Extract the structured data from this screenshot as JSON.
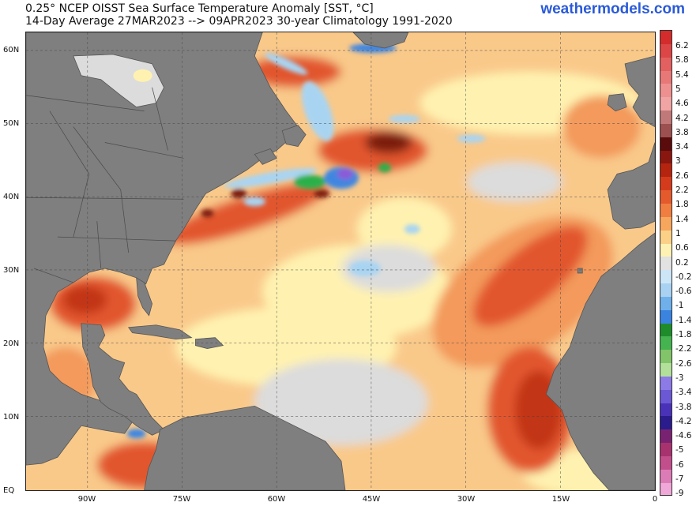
{
  "header": {
    "title_line1": "0.25° NCEP OISST Sea Surface Temperature Anomaly [SST, °C]",
    "title_line2": "14-Day Average 27MAR2023 --> 09APR2023   30-year Climatology 1991-2020",
    "brand": "weathermodels.com"
  },
  "axes": {
    "lat_labels": [
      {
        "label": "60N",
        "lat": 60
      },
      {
        "label": "50N",
        "lat": 50
      },
      {
        "label": "40N",
        "lat": 40
      },
      {
        "label": "30N",
        "lat": 30
      },
      {
        "label": "20N",
        "lat": 20
      },
      {
        "label": "10N",
        "lat": 10
      },
      {
        "label": "EQ",
        "lat": 0
      }
    ],
    "lon_labels": [
      {
        "label": "90W",
        "lon": -90
      },
      {
        "label": "75W",
        "lon": -75
      },
      {
        "label": "60W",
        "lon": -60
      },
      {
        "label": "45W",
        "lon": -45
      },
      {
        "label": "30W",
        "lon": -30
      },
      {
        "label": "15W",
        "lon": -15
      },
      {
        "label": "0",
        "lon": 0
      }
    ],
    "lon_range": [
      -100,
      0
    ],
    "lat_range": [
      -0.5,
      62.5
    ]
  },
  "colors": {
    "land": "#7f7f7f",
    "land_lines": "#5a5a5a",
    "near_zero": "#dcdcdc",
    "mild_warm": "#fff2b0",
    "warm": "#f9c98a",
    "warmer": "#f39a5c",
    "hot": "#e2562d",
    "hotter": "#c23519",
    "extreme": "#7a1b10",
    "cool": "#a8d4f2",
    "cold": "#3f86e0",
    "very_cold": "#29b04a"
  },
  "colorbar": {
    "labels": [
      "6.2",
      "5.8",
      "5.4",
      "5",
      "4.6",
      "4.2",
      "3.8",
      "3.4",
      "3",
      "2.6",
      "2.2",
      "1.8",
      "1.4",
      "1",
      "0.6",
      "0.2",
      "-0.2",
      "-0.6",
      "-1",
      "-1.4",
      "-1.8",
      "-2.2",
      "-2.6",
      "-3",
      "-3.4",
      "-3.8",
      "-4.2",
      "-4.6",
      "-5",
      "-6",
      "-7",
      "-9"
    ],
    "colors": [
      "#d42c2c",
      "#dc4646",
      "#e26060",
      "#e87878",
      "#ee9090",
      "#f0a4a4",
      "#c07878",
      "#9c5050",
      "#5a0c0c",
      "#8a1610",
      "#b4240f",
      "#d43b1c",
      "#e55a2c",
      "#f07e40",
      "#f7a65e",
      "#fbd187",
      "#fdf2b4",
      "#e2e2e2",
      "#cde6f7",
      "#a9d2f2",
      "#6fb0ea",
      "#3a84df",
      "#1f8c2c",
      "#44b350",
      "#82c46a",
      "#b2e09a",
      "#8c7ae6",
      "#6a58d4",
      "#4a32b8",
      "#2a1c8c",
      "#7a2272",
      "#a8326e",
      "#c24e8c",
      "#dc7cb6",
      "#f0a8d8"
    ]
  }
}
